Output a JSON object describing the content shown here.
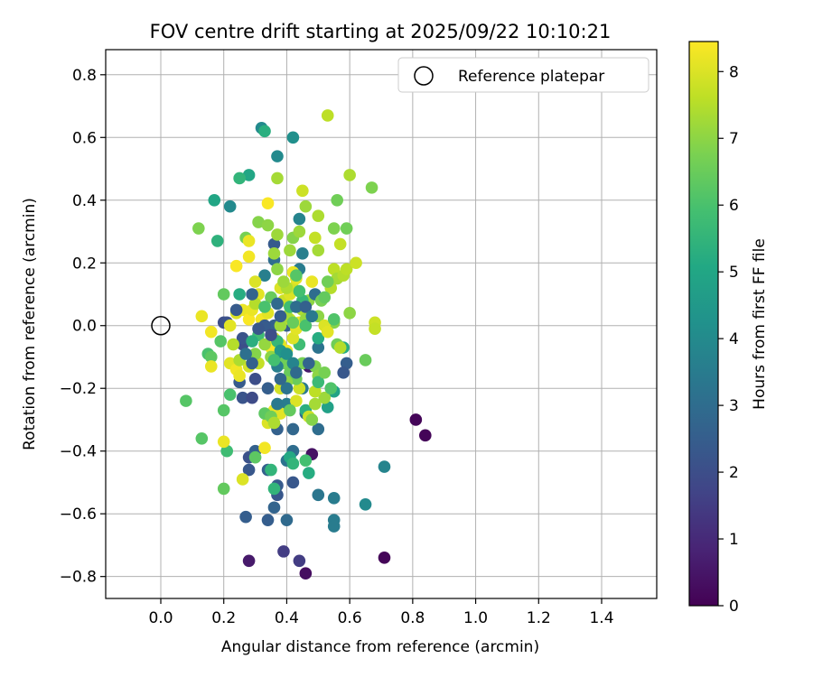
{
  "chart_data": {
    "type": "scatter",
    "title": "FOV centre drift starting at 2025/09/22 10:10:21",
    "xlabel": "Angular distance from reference (arcmin)",
    "ylabel": "Rotation from reference (arcmin)",
    "xlim": [
      -0.175,
      1.575
    ],
    "ylim": [
      -0.87,
      0.88
    ],
    "xticks": [
      0.0,
      0.2,
      0.4,
      0.6,
      0.8,
      1.0,
      1.2,
      1.4
    ],
    "xtick_labels": [
      "0.0",
      "0.2",
      "0.4",
      "0.6",
      "0.8",
      "1.0",
      "1.2",
      "1.4"
    ],
    "yticks": [
      0.8,
      0.6,
      0.4,
      0.2,
      0.0,
      -0.2,
      -0.4,
      -0.6,
      -0.8
    ],
    "ytick_labels": [
      "0.8",
      "0.6",
      "0.4",
      "0.2",
      "0.0",
      "−0.2",
      "−0.4",
      "−0.6",
      "−0.8"
    ],
    "grid": true,
    "legend": {
      "position": "top-right",
      "entries": [
        "Reference platepar"
      ]
    },
    "reference_point": {
      "x": 0.0,
      "y": 0.0,
      "label": "Reference platepar"
    },
    "colorbar": {
      "label": "Hours from first FF file",
      "colormap": "viridis",
      "range": [
        0,
        8.45
      ],
      "ticks": [
        0,
        1,
        2,
        3,
        4,
        5,
        6,
        7,
        8
      ],
      "tick_labels": [
        "0",
        "1",
        "2",
        "3",
        "4",
        "5",
        "6",
        "7",
        "8"
      ]
    },
    "points": [
      [
        0.81,
        -0.3,
        0.1
      ],
      [
        0.84,
        -0.35,
        0.1
      ],
      [
        0.71,
        -0.74,
        0.1
      ],
      [
        0.46,
        -0.79,
        0.3
      ],
      [
        0.28,
        -0.75,
        0.6
      ],
      [
        0.48,
        -0.41,
        0.4
      ],
      [
        0.47,
        -0.13,
        0.6
      ],
      [
        0.44,
        -0.75,
        1.5
      ],
      [
        0.39,
        -0.72,
        1.5
      ],
      [
        0.27,
        -0.61,
        2.5
      ],
      [
        0.34,
        -0.62,
        2.5
      ],
      [
        0.36,
        -0.58,
        2.7
      ],
      [
        0.4,
        -0.62,
        2.9
      ],
      [
        0.37,
        -0.54,
        2.3
      ],
      [
        0.37,
        -0.51,
        2.4
      ],
      [
        0.42,
        -0.5,
        2.3
      ],
      [
        0.28,
        -0.46,
        2.3
      ],
      [
        0.28,
        -0.42,
        2.1
      ],
      [
        0.3,
        -0.4,
        2.6
      ],
      [
        0.34,
        -0.46,
        2.6
      ],
      [
        0.42,
        -0.4,
        3.0
      ],
      [
        0.4,
        -0.43,
        3.2
      ],
      [
        0.5,
        -0.54,
        3.3
      ],
      [
        0.55,
        -0.55,
        3.5
      ],
      [
        0.55,
        -0.62,
        3.5
      ],
      [
        0.55,
        -0.64,
        3.5
      ],
      [
        0.65,
        -0.57,
        4.0
      ],
      [
        0.71,
        -0.45,
        3.8
      ],
      [
        0.26,
        -0.23,
        2.2
      ],
      [
        0.29,
        -0.23,
        1.9
      ],
      [
        0.25,
        -0.18,
        2.4
      ],
      [
        0.26,
        -0.06,
        2.0
      ],
      [
        0.26,
        -0.04,
        2.2
      ],
      [
        0.2,
        0.01,
        2.0
      ],
      [
        0.21,
        0.01,
        2.1
      ],
      [
        0.3,
        -0.17,
        2.0
      ],
      [
        0.34,
        -0.2,
        2.5
      ],
      [
        0.37,
        -0.33,
        2.6
      ],
      [
        0.42,
        -0.33,
        2.8
      ],
      [
        0.46,
        -0.28,
        2.9
      ],
      [
        0.5,
        -0.33,
        3.0
      ],
      [
        0.5,
        -0.07,
        3.2
      ],
      [
        0.59,
        -0.12,
        2.5
      ],
      [
        0.58,
        -0.15,
        2.3
      ],
      [
        0.36,
        0.0,
        2.6
      ],
      [
        0.4,
        0.0,
        2.5
      ],
      [
        0.36,
        0.26,
        2.4
      ],
      [
        0.36,
        0.21,
        3.0
      ],
      [
        0.44,
        0.34,
        3.8
      ],
      [
        0.45,
        0.23,
        3.6
      ],
      [
        0.44,
        0.18,
        3.5
      ],
      [
        0.22,
        0.38,
        4.0
      ],
      [
        0.33,
        0.16,
        3.6
      ],
      [
        0.38,
        -0.1,
        3.7
      ],
      [
        0.4,
        -0.25,
        3.5
      ],
      [
        0.45,
        -0.2,
        3.4
      ],
      [
        0.32,
        0.63,
        4.0
      ],
      [
        0.42,
        0.6,
        4.2
      ],
      [
        0.37,
        0.54,
        4.0
      ],
      [
        0.33,
        0.62,
        5.3
      ],
      [
        0.17,
        0.4,
        5.0
      ],
      [
        0.28,
        0.48,
        5.0
      ],
      [
        0.25,
        0.47,
        5.5
      ],
      [
        0.18,
        0.27,
        5.4
      ],
      [
        0.25,
        0.1,
        5.2
      ],
      [
        0.55,
        -0.21,
        4.9
      ],
      [
        0.53,
        -0.26,
        4.8
      ],
      [
        0.46,
        -0.27,
        5.3
      ],
      [
        0.47,
        -0.47,
        5.2
      ],
      [
        0.41,
        -0.42,
        5.1
      ],
      [
        0.35,
        -0.46,
        5.5
      ],
      [
        0.36,
        -0.52,
        5.5
      ],
      [
        0.42,
        -0.44,
        5.5
      ],
      [
        0.46,
        -0.43,
        5.9
      ],
      [
        0.21,
        -0.4,
        5.8
      ],
      [
        0.3,
        -0.42,
        6.3
      ],
      [
        0.2,
        -0.52,
        6.4
      ],
      [
        0.13,
        -0.36,
        6.2
      ],
      [
        0.08,
        -0.24,
        6.2
      ],
      [
        0.2,
        -0.27,
        6.2
      ],
      [
        0.15,
        -0.09,
        6.0
      ],
      [
        0.16,
        -0.1,
        6.3
      ],
      [
        0.31,
        -0.03,
        5.8
      ],
      [
        0.29,
        -0.05,
        5.3
      ],
      [
        0.44,
        -0.06,
        5.8
      ],
      [
        0.5,
        -0.04,
        5.2
      ],
      [
        0.56,
        -0.06,
        6.6
      ],
      [
        0.58,
        -0.07,
        5.2
      ],
      [
        0.65,
        -0.11,
        6.5
      ],
      [
        0.12,
        0.31,
        6.8
      ],
      [
        0.27,
        0.28,
        6.7
      ],
      [
        0.31,
        0.33,
        6.9
      ],
      [
        0.34,
        0.32,
        7.0
      ],
      [
        0.37,
        0.29,
        7.2
      ],
      [
        0.42,
        0.28,
        6.9
      ],
      [
        0.44,
        0.3,
        7.2
      ],
      [
        0.41,
        0.24,
        7.2
      ],
      [
        0.36,
        0.23,
        7.2
      ],
      [
        0.37,
        0.18,
        7.0
      ],
      [
        0.37,
        0.47,
        7.3
      ],
      [
        0.45,
        0.43,
        7.8
      ],
      [
        0.46,
        0.38,
        7.2
      ],
      [
        0.5,
        0.35,
        7.4
      ],
      [
        0.53,
        0.67,
        7.6
      ],
      [
        0.56,
        0.4,
        6.6
      ],
      [
        0.55,
        0.31,
        6.8
      ],
      [
        0.59,
        0.31,
        6.6
      ],
      [
        0.6,
        0.48,
        7.4
      ],
      [
        0.67,
        0.44,
        6.8
      ],
      [
        0.57,
        0.26,
        7.7
      ],
      [
        0.49,
        0.28,
        7.7
      ],
      [
        0.54,
        0.12,
        7.5
      ],
      [
        0.55,
        0.18,
        7.6
      ],
      [
        0.56,
        0.15,
        7.3
      ],
      [
        0.58,
        0.16,
        7.5
      ],
      [
        0.59,
        0.18,
        7.6
      ],
      [
        0.62,
        0.2,
        7.8
      ],
      [
        0.5,
        0.24,
        7.3
      ],
      [
        0.5,
        0.03,
        7.0
      ],
      [
        0.55,
        0.01,
        6.9
      ],
      [
        0.6,
        0.04,
        7.0
      ],
      [
        0.68,
        0.01,
        7.8
      ],
      [
        0.68,
        -0.01,
        7.7
      ],
      [
        0.57,
        -0.07,
        7.5
      ],
      [
        0.49,
        -0.13,
        6.8
      ],
      [
        0.5,
        -0.16,
        7.0
      ],
      [
        0.52,
        -0.23,
        7.2
      ],
      [
        0.49,
        -0.25,
        7.3
      ],
      [
        0.47,
        -0.29,
        7.8
      ],
      [
        0.49,
        -0.21,
        7.6
      ],
      [
        0.44,
        -0.2,
        7.8
      ],
      [
        0.43,
        -0.24,
        8.0
      ],
      [
        0.38,
        -0.2,
        7.9
      ],
      [
        0.36,
        -0.27,
        8.2
      ],
      [
        0.34,
        -0.31,
        8.0
      ],
      [
        0.38,
        -0.28,
        8.1
      ],
      [
        0.33,
        -0.39,
        8.3
      ],
      [
        0.26,
        -0.49,
        8.0
      ],
      [
        0.2,
        -0.37,
        8.2
      ],
      [
        0.22,
        -0.12,
        8.1
      ],
      [
        0.24,
        -0.14,
        8.3
      ],
      [
        0.25,
        -0.16,
        8.2
      ],
      [
        0.28,
        -0.13,
        7.9
      ],
      [
        0.31,
        -0.12,
        7.7
      ],
      [
        0.16,
        -0.13,
        8.2
      ],
      [
        0.16,
        -0.02,
        8.3
      ],
      [
        0.13,
        0.03,
        8.2
      ],
      [
        0.22,
        0.0,
        8.1
      ],
      [
        0.24,
        0.04,
        8.0
      ],
      [
        0.26,
        0.05,
        8.2
      ],
      [
        0.28,
        0.02,
        8.4
      ],
      [
        0.29,
        0.05,
        8.2
      ],
      [
        0.32,
        0.02,
        8.3
      ],
      [
        0.34,
        0.04,
        8.1
      ],
      [
        0.35,
        -0.07,
        8.4
      ],
      [
        0.36,
        -0.04,
        8.2
      ],
      [
        0.38,
        -0.06,
        8.1
      ],
      [
        0.4,
        -0.08,
        8.3
      ],
      [
        0.42,
        -0.04,
        8.0
      ],
      [
        0.43,
        -0.01,
        8.1
      ],
      [
        0.44,
        0.01,
        8.2
      ],
      [
        0.41,
        0.02,
        7.9
      ],
      [
        0.39,
        0.08,
        7.8
      ],
      [
        0.41,
        0.1,
        8.0
      ],
      [
        0.42,
        0.12,
        7.9
      ],
      [
        0.44,
        0.11,
        8.1
      ],
      [
        0.43,
        0.15,
        8.1
      ],
      [
        0.42,
        0.17,
        8.2
      ],
      [
        0.48,
        0.14,
        8.2
      ],
      [
        0.52,
        0.0,
        8.0
      ],
      [
        0.53,
        -0.02,
        8.1
      ],
      [
        0.24,
        0.19,
        8.4
      ],
      [
        0.28,
        0.22,
        8.3
      ],
      [
        0.28,
        0.27,
        8.2
      ],
      [
        0.34,
        0.39,
        8.4
      ],
      [
        0.3,
        0.14,
        8.0
      ],
      [
        0.31,
        0.1,
        8.1
      ],
      [
        0.38,
        0.12,
        8.0
      ],
      [
        0.3,
        0.07,
        7.5
      ],
      [
        0.38,
        0.0,
        7.2
      ],
      [
        0.4,
        0.03,
        7.3
      ],
      [
        0.45,
        0.05,
        7.4
      ],
      [
        0.46,
        0.02,
        7.1
      ],
      [
        0.47,
        0.08,
        7.0
      ],
      [
        0.4,
        0.12,
        7.4
      ],
      [
        0.39,
        0.14,
        7.2
      ],
      [
        0.25,
        -0.11,
        7.4
      ],
      [
        0.23,
        -0.06,
        7.5
      ],
      [
        0.3,
        -0.09,
        6.9
      ],
      [
        0.33,
        -0.06,
        7.1
      ],
      [
        0.35,
        -0.1,
        7.0
      ],
      [
        0.39,
        -0.12,
        6.6
      ],
      [
        0.41,
        -0.15,
        6.5
      ],
      [
        0.43,
        -0.17,
        6.5
      ],
      [
        0.41,
        -0.27,
        6.4
      ],
      [
        0.33,
        -0.28,
        6.3
      ],
      [
        0.35,
        -0.29,
        6.6
      ],
      [
        0.36,
        -0.31,
        7.4
      ],
      [
        0.4,
        -0.18,
        7.0
      ],
      [
        0.45,
        -0.12,
        6.7
      ],
      [
        0.48,
        -0.3,
        6.9
      ],
      [
        0.35,
        0.09,
        6.5
      ],
      [
        0.33,
        0.06,
        6.0
      ],
      [
        0.41,
        0.06,
        5.8
      ],
      [
        0.45,
        0.08,
        5.6
      ],
      [
        0.42,
        0.01,
        6.5
      ],
      [
        0.46,
        0.0,
        6.0
      ],
      [
        0.37,
        -0.05,
        5.6
      ],
      [
        0.38,
        -0.08,
        4.5
      ],
      [
        0.4,
        -0.09,
        4.2
      ],
      [
        0.37,
        -0.13,
        3.6
      ],
      [
        0.42,
        -0.12,
        3.8
      ],
      [
        0.4,
        -0.2,
        3.2
      ],
      [
        0.37,
        -0.25,
        3.4
      ],
      [
        0.38,
        -0.17,
        2.8
      ],
      [
        0.43,
        -0.15,
        2.9
      ],
      [
        0.47,
        -0.12,
        2.7
      ],
      [
        0.29,
        -0.12,
        2.6
      ],
      [
        0.27,
        -0.09,
        3.1
      ],
      [
        0.24,
        0.05,
        2.4
      ],
      [
        0.29,
        0.1,
        2.7
      ],
      [
        0.33,
        0.0,
        2.4
      ],
      [
        0.31,
        -0.01,
        2.3
      ],
      [
        0.35,
        -0.03,
        2.0
      ],
      [
        0.38,
        0.03,
        2.5
      ],
      [
        0.37,
        0.07,
        2.9
      ],
      [
        0.43,
        0.06,
        3.0
      ],
      [
        0.46,
        0.06,
        2.6
      ],
      [
        0.49,
        0.1,
        3.0
      ],
      [
        0.48,
        0.03,
        3.4
      ],
      [
        0.55,
        0.02,
        6.1
      ],
      [
        0.51,
        0.08,
        6.7
      ],
      [
        0.53,
        0.14,
        6.6
      ],
      [
        0.5,
        -0.18,
        5.7
      ],
      [
        0.54,
        -0.2,
        6.1
      ],
      [
        0.52,
        -0.15,
        6.7
      ],
      [
        0.19,
        -0.05,
        6.2
      ],
      [
        0.2,
        0.1,
        6.4
      ],
      [
        0.22,
        -0.22,
        6.0
      ],
      [
        0.36,
        -0.11,
        5.9
      ],
      [
        0.44,
        0.11,
        5.9
      ],
      [
        0.52,
        0.09,
        6.4
      ],
      [
        0.43,
        0.16,
        6.2
      ]
    ]
  }
}
